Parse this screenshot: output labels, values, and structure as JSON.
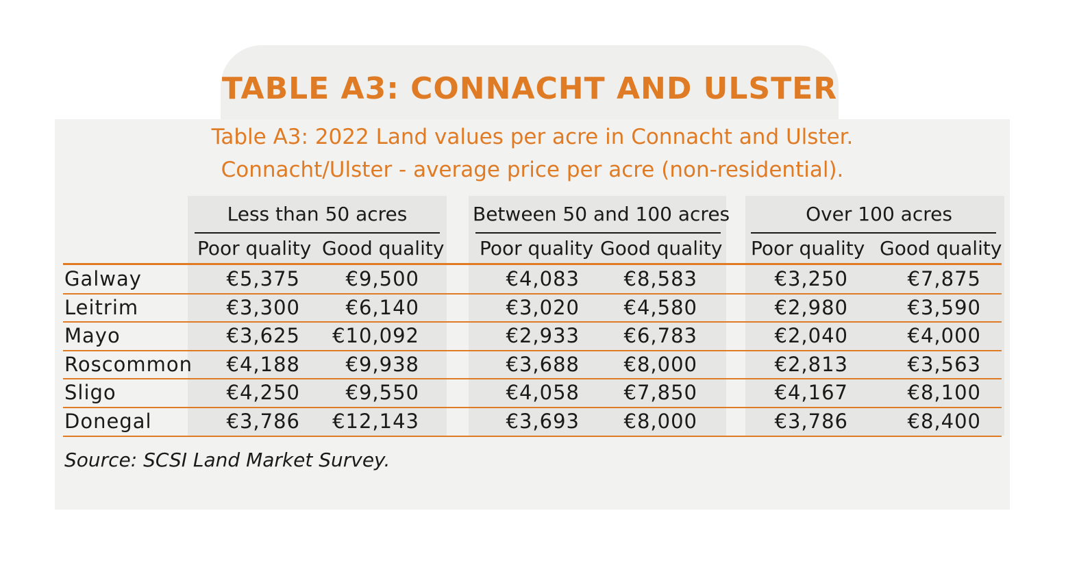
{
  "heading": "TABLE A3: CONNACHT AND ULSTER",
  "caption_line1": "Table A3: 2022 Land values per acre in Connacht and Ulster.",
  "caption_line2": "Connacht/Ulster - average price per acre (non-residential).",
  "groups": [
    {
      "label": "Less than 50 acres",
      "sub": [
        "Poor quality",
        "Good quality"
      ]
    },
    {
      "label": "Between 50 and 100 acres",
      "sub": [
        "Poor quality",
        "Good quality"
      ]
    },
    {
      "label": "Over 100 acres",
      "sub": [
        "Poor quality",
        "Good quality"
      ]
    }
  ],
  "rows": [
    {
      "county": "Galway",
      "values": [
        "€5,375",
        "€9,500",
        "€4,083",
        "€8,583",
        "€3,250",
        "€7,875"
      ]
    },
    {
      "county": "Leitrim",
      "values": [
        "€3,300",
        "€6,140",
        "€3,020",
        "€4,580",
        "€2,980",
        "€3,590"
      ]
    },
    {
      "county": "Mayo",
      "values": [
        "€3,625",
        "€10,092",
        "€2,933",
        "€6,783",
        "€2,040",
        "€4,000"
      ]
    },
    {
      "county": "Roscommon",
      "values": [
        "€4,188",
        "€9,938",
        "€3,688",
        "€8,000",
        "€2,813",
        "€3,563"
      ]
    },
    {
      "county": "Sligo",
      "values": [
        "€4,250",
        "€9,550",
        "€4,058",
        "€7,850",
        "€4,167",
        "€8,100"
      ]
    },
    {
      "county": "Donegal",
      "values": [
        "€3,786",
        "€12,143",
        "€3,693",
        "€8,000",
        "€3,786",
        "€8,400"
      ]
    }
  ],
  "source": "Source: SCSI Land Market Survey.",
  "colors": {
    "accent": "#e07b25",
    "panel": "#f2f2f1",
    "shade": "#e6e6e5"
  }
}
